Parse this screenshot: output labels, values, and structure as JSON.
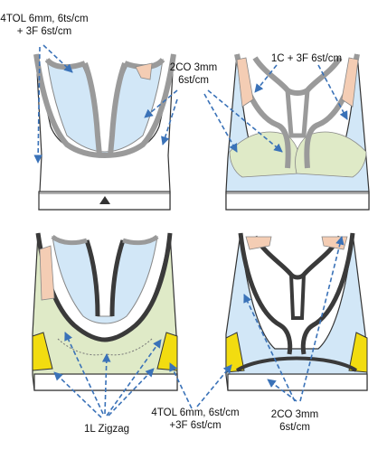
{
  "labels": {
    "tl_top": "4TOL 6mm, 6ts/cm",
    "tl_bottom": "+ 3F 6st/cm",
    "center_top": "2CO 3mm",
    "center_bottom": "6st/cm",
    "tr": "1C + 3F 6st/cm",
    "zigzag": "1L Zigzag",
    "bc_1": "4TOL 6mm, 6st/cm",
    "bc_2": "+3F 6st/cm",
    "br_1": "2CO 3mm",
    "br_2": "6st/cm"
  },
  "colors": {
    "light_blue": "#d2e7f7",
    "light_green": "#dfeac7",
    "peach": "#f4cdb4",
    "yellow": "#f2dc10",
    "binding_gray": "#9a9a9a",
    "dark_outline": "#3a3a3a",
    "arrow_blue": "#3a72b8"
  }
}
